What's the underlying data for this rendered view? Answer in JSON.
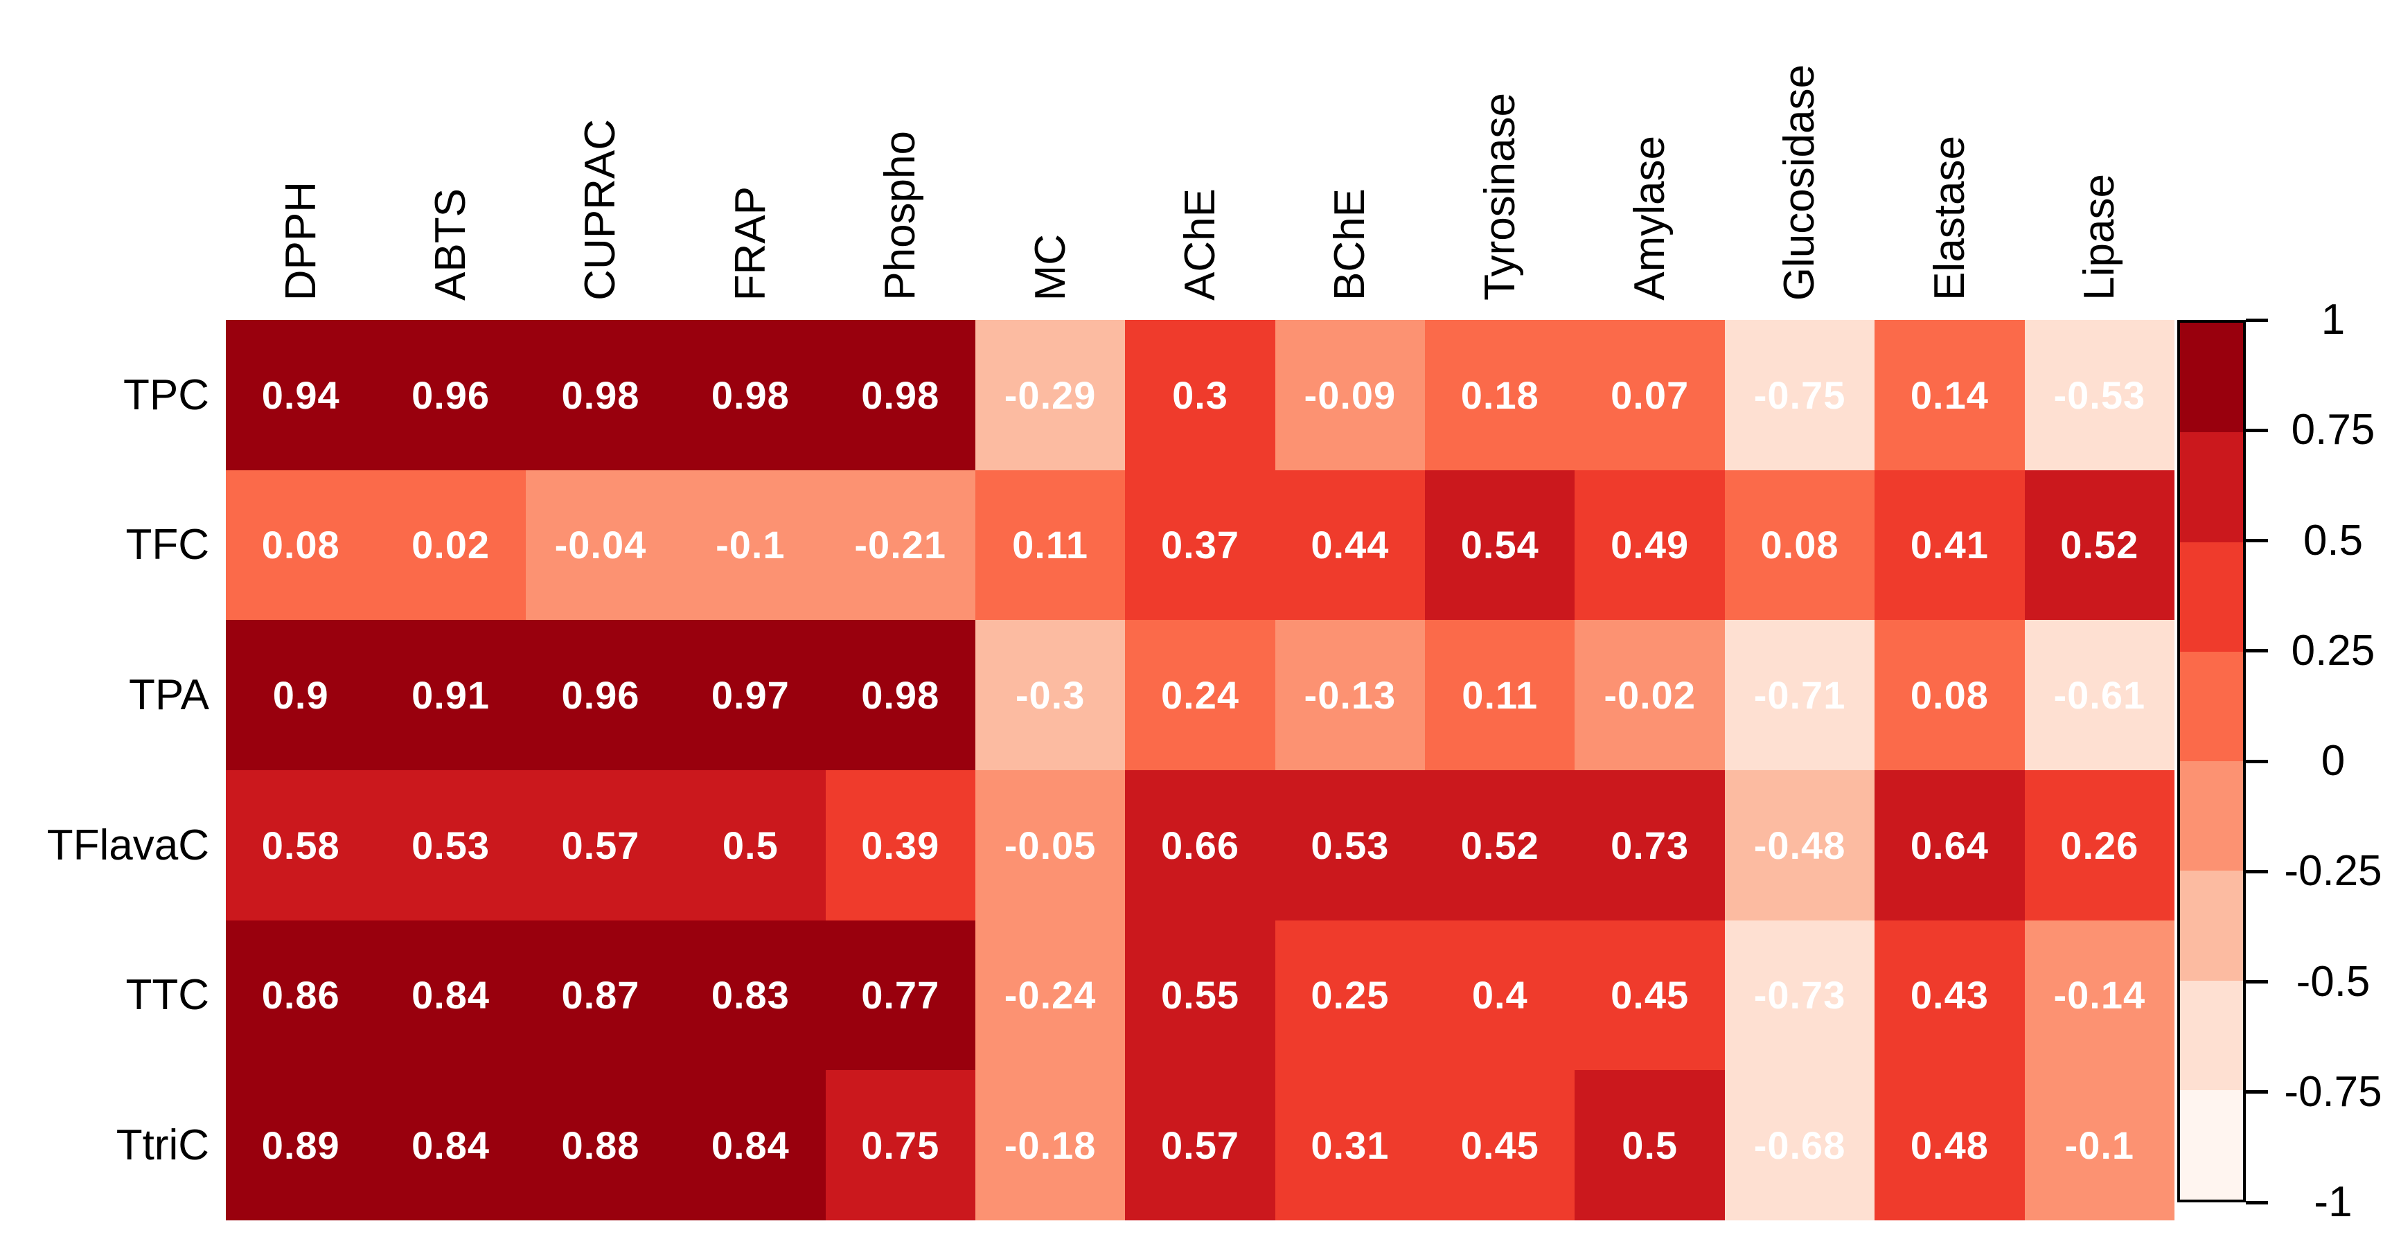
{
  "chart_data": {
    "type": "heatmap",
    "title": "",
    "rows": [
      "TPC",
      "TFC",
      "TPA",
      "TFlavaC",
      "TTC",
      "TtriC"
    ],
    "columns": [
      "DPPH",
      "ABTS",
      "CUPRAC",
      "FRAP",
      "Phospho",
      "MC",
      "AChE",
      "BChE",
      "Tyrosinase",
      "Amylase",
      "Glucosidase",
      "Elastase",
      "Lipase"
    ],
    "values": [
      [
        0.94,
        0.96,
        0.98,
        0.98,
        0.98,
        -0.29,
        0.3,
        -0.09,
        0.18,
        0.07,
        -0.75,
        0.14,
        -0.53
      ],
      [
        0.08,
        0.02,
        -0.04,
        -0.1,
        -0.21,
        0.11,
        0.37,
        0.44,
        0.54,
        0.49,
        0.08,
        0.41,
        0.52
      ],
      [
        0.9,
        0.91,
        0.96,
        0.97,
        0.98,
        -0.3,
        0.24,
        -0.13,
        0.11,
        -0.02,
        -0.71,
        0.08,
        -0.61
      ],
      [
        0.58,
        0.53,
        0.57,
        0.5,
        0.39,
        -0.05,
        0.66,
        0.53,
        0.52,
        0.73,
        -0.48,
        0.64,
        0.26
      ],
      [
        0.86,
        0.84,
        0.87,
        0.83,
        0.77,
        -0.24,
        0.55,
        0.25,
        0.4,
        0.45,
        -0.73,
        0.43,
        -0.14
      ],
      [
        0.89,
        0.84,
        0.88,
        0.84,
        0.75,
        -0.18,
        0.57,
        0.31,
        0.45,
        0.5,
        -0.68,
        0.48,
        -0.1
      ]
    ],
    "value_range": [
      -1,
      1
    ],
    "colorscale": {
      "palette_low_to_high": [
        "#FFF5F0",
        "#FEE0D2",
        "#FCBBA1",
        "#FC9272",
        "#FB6A4A",
        "#EF3B2C",
        "#CB181D",
        "#99000D"
      ],
      "bins": 8,
      "bin_width": 0.25,
      "boundary_overrides": {
        "0.75": 6,
        "-0.75": 1
      }
    },
    "cell_text_color": "#ffffff",
    "axis_label_color": "#000000",
    "grid": false,
    "legend": {
      "position": "right",
      "tick_labels": [
        "1",
        "0.75",
        "0.5",
        "0.25",
        "0",
        "-0.25",
        "-0.5",
        "-0.75",
        "-1"
      ],
      "border_color": "#000000"
    }
  }
}
